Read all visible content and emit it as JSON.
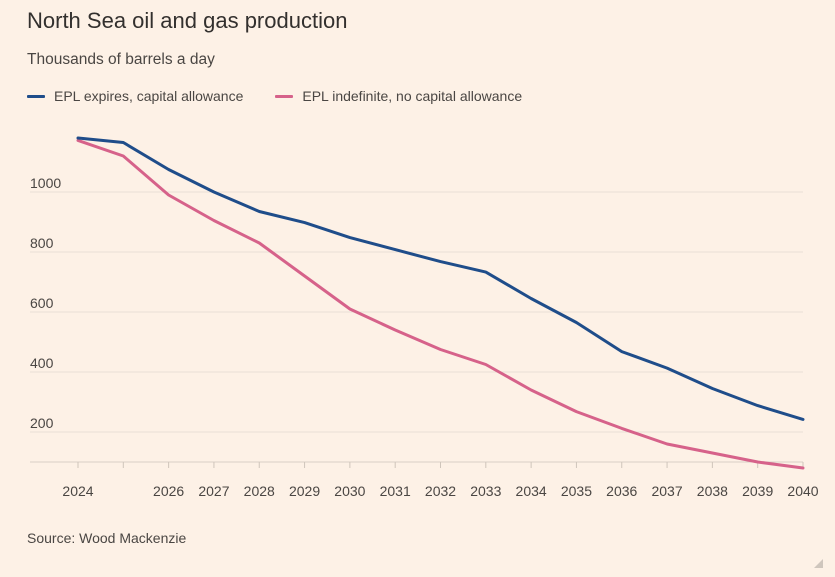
{
  "title": "North Sea oil and gas production",
  "subtitle": "Thousands of barrels a day",
  "source": "Source: Wood Mackenzie",
  "colors": {
    "background": "#fdf1e6",
    "series_blue": "#1f4d8a",
    "series_pink": "#d6628a",
    "gridline": "#e9dfd5"
  },
  "chart_data": {
    "type": "line",
    "title": "North Sea oil and gas production",
    "ylabel": "Thousands of barrels a day",
    "xlabel": "",
    "x": [
      2024,
      2025,
      2026,
      2027,
      2028,
      2029,
      2030,
      2031,
      2032,
      2033,
      2034,
      2035,
      2036,
      2037,
      2038,
      2039,
      2040
    ],
    "x_tick_labels": [
      "2024",
      "",
      "2026",
      "2027",
      "2028",
      "2029",
      "2030",
      "2031",
      "2032",
      "2033",
      "2034",
      "2035",
      "2036",
      "2037",
      "2038",
      "2039",
      "2040"
    ],
    "y_ticks": [
      200,
      400,
      600,
      800,
      1000
    ],
    "ylim": [
      0,
      1200
    ],
    "grid": true,
    "legend_position": "top-left",
    "series": [
      {
        "name": "EPL expires, capital allowance",
        "color": "#1f4d8a",
        "values": [
          1180,
          1165,
          1075,
          1000,
          935,
          898,
          848,
          808,
          768,
          733,
          645,
          565,
          468,
          413,
          345,
          288,
          242
        ]
      },
      {
        "name": "EPL indefinite, no capital allowance",
        "color": "#d6628a",
        "values": [
          1172,
          1120,
          990,
          905,
          830,
          720,
          610,
          540,
          475,
          425,
          340,
          268,
          212,
          160,
          130,
          100,
          80
        ]
      }
    ]
  }
}
